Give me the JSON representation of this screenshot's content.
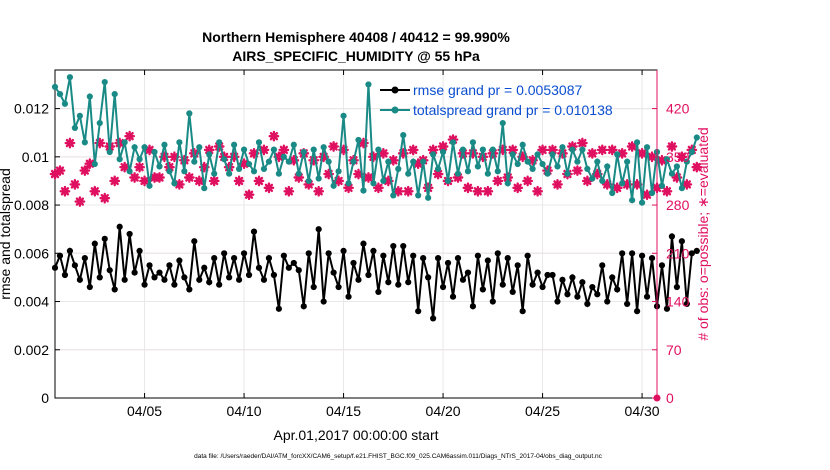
{
  "chart_data": {
    "type": "line",
    "title_line1": "Northern Hemisphere 40408 / 40412 = 99.990%",
    "title_line2": "AIRS_SPECIFIC_HUMIDITY @ 55 hPa",
    "xlabel": "Apr.01,2017 00:00:00 start",
    "ylabel_left": "rmse and totalspread",
    "ylabel_right": "# of obs: o=possible; ∗=evaluated",
    "footer": "data file: /Users/raeder/DAI/ATM_forcXX/CAM6_setup/f.e21.FHIST_BGC.f09_025.CAM6assim.011/Diags_NTrS_2017-04/obs_diag_output.nc",
    "xlim": [
      0.5,
      30.75
    ],
    "ylim_left": [
      0,
      0.0136
    ],
    "ylim_right": [
      0,
      476
    ],
    "x_ticks": [
      {
        "x": 5,
        "label": "04/05"
      },
      {
        "x": 10,
        "label": "04/10"
      },
      {
        "x": 15,
        "label": "04/15"
      },
      {
        "x": 20,
        "label": "04/20"
      },
      {
        "x": 25,
        "label": "04/25"
      },
      {
        "x": 30,
        "label": "04/30"
      }
    ],
    "y_ticks_left": [
      {
        "v": 0,
        "label": "0"
      },
      {
        "v": 0.002,
        "label": "0.002"
      },
      {
        "v": 0.004,
        "label": "0.004"
      },
      {
        "v": 0.006,
        "label": "0.006"
      },
      {
        "v": 0.008,
        "label": "0.008"
      },
      {
        "v": 0.01,
        "label": "0.01"
      },
      {
        "v": 0.012,
        "label": "0.012"
      }
    ],
    "y_ticks_right": [
      {
        "v": 0,
        "label": "0"
      },
      {
        "v": 70,
        "label": "70"
      },
      {
        "v": 140,
        "label": "140"
      },
      {
        "v": 210,
        "label": "210"
      },
      {
        "v": 280,
        "label": "280"
      },
      {
        "v": 350,
        "label": "350"
      },
      {
        "v": 420,
        "label": "420"
      }
    ],
    "grid": true,
    "legend_position": "top-right",
    "x_start": 0.5,
    "x_step": 0.25,
    "series": [
      {
        "name": "rmse grand pr = 0.0053087",
        "color": "#000000",
        "axis": "left",
        "marker": "circle",
        "values": [
          0.0054,
          0.0059,
          0.0051,
          0.0061,
          0.0055,
          0.0049,
          0.0058,
          0.0046,
          0.0064,
          0.005,
          0.0066,
          0.0053,
          0.0045,
          0.0071,
          0.0049,
          0.0068,
          0.0052,
          0.0061,
          0.0047,
          0.0055,
          0.005,
          0.0052,
          0.0049,
          0.0055,
          0.0047,
          0.0057,
          0.005,
          0.0045,
          0.0065,
          0.0049,
          0.0054,
          0.0048,
          0.0058,
          0.0047,
          0.006,
          0.005,
          0.0058,
          0.0049,
          0.006,
          0.0051,
          0.0069,
          0.0054,
          0.0049,
          0.0058,
          0.0051,
          0.0037,
          0.0059,
          0.0054,
          0.0056,
          0.0053,
          0.0038,
          0.006,
          0.0046,
          0.007,
          0.004,
          0.006,
          0.0052,
          0.0046,
          0.0061,
          0.0042,
          0.0056,
          0.0049,
          0.0064,
          0.0051,
          0.0061,
          0.0044,
          0.0059,
          0.0048,
          0.0063,
          0.0047,
          0.0063,
          0.0048,
          0.0059,
          0.0036,
          0.0058,
          0.005,
          0.0033,
          0.0058,
          0.0046,
          0.0056,
          0.0042,
          0.0058,
          0.0049,
          0.0052,
          0.0038,
          0.0059,
          0.0045,
          0.0057,
          0.004,
          0.006,
          0.0047,
          0.0058,
          0.0044,
          0.0055,
          0.0036,
          0.0059,
          0.0047,
          0.0052,
          0.0046,
          0.0051,
          0.0051,
          0.004,
          0.0049,
          0.0043,
          0.005,
          0.0042,
          0.0048,
          0.0039,
          0.0046,
          0.0043,
          0.0055,
          0.004,
          0.005,
          0.0045,
          0.006,
          0.0039,
          0.006,
          0.0036,
          0.0059,
          0.0042,
          0.0058,
          0.0038,
          0.0055,
          0.0037,
          0.0067,
          0.0046,
          0.0065,
          0.0039,
          0.006,
          0.0061
        ]
      },
      {
        "name": "totalspread grand pr = 0.010138",
        "color": "#1a8a86",
        "axis": "left",
        "marker": "circle",
        "values": [
          0.0129,
          0.0126,
          0.0122,
          0.0133,
          0.0112,
          0.0117,
          0.0106,
          0.0125,
          0.0097,
          0.0114,
          0.0131,
          0.0102,
          0.0126,
          0.0099,
          0.0106,
          0.0094,
          0.0104,
          0.0099,
          0.0104,
          0.0088,
          0.0102,
          0.0096,
          0.0105,
          0.0094,
          0.0089,
          0.0106,
          0.0094,
          0.0118,
          0.0098,
          0.0104,
          0.0087,
          0.0101,
          0.0093,
          0.0106,
          0.0099,
          0.0093,
          0.0105,
          0.0095,
          0.0103,
          0.0097,
          0.0094,
          0.0106,
          0.0095,
          0.0098,
          0.0103,
          0.0093,
          0.01,
          0.0098,
          0.0105,
          0.0093,
          0.0102,
          0.009,
          0.0103,
          0.0091,
          0.0104,
          0.0098,
          0.0088,
          0.0094,
          0.0117,
          0.0089,
          0.0098,
          0.0107,
          0.0086,
          0.013,
          0.0089,
          0.0103,
          0.009,
          0.0098,
          0.0084,
          0.0095,
          0.0109,
          0.0093,
          0.0098,
          0.0084,
          0.0098,
          0.0083,
          0.0101,
          0.0095,
          0.0102,
          0.009,
          0.0106,
          0.0093,
          0.0103,
          0.0094,
          0.0106,
          0.0096,
          0.0103,
          0.0093,
          0.0103,
          0.0094,
          0.0114,
          0.0089,
          0.0101,
          0.0097,
          0.0105,
          0.0098,
          0.0095,
          0.0101,
          0.0097,
          0.0093,
          0.0101,
          0.0096,
          0.0104,
          0.0093,
          0.0103,
          0.0098,
          0.0103,
          0.0095,
          0.0091,
          0.0098,
          0.009,
          0.0096,
          0.0085,
          0.0101,
          0.0089,
          0.0098,
          0.0082,
          0.0106,
          0.0081,
          0.0104,
          0.0085,
          0.0102,
          0.0088,
          0.0099,
          0.0093,
          0.0096,
          0.0087,
          0.0098,
          0.0102,
          0.0108
        ]
      },
      {
        "name": "",
        "color": "#e01060",
        "axis": "right",
        "marker": "star",
        "values": [
          325,
          330,
          300,
          370,
          310,
          285,
          330,
          340,
          300,
          370,
          290,
          365,
          315,
          370,
          335,
          380,
          320,
          335,
          315,
          360,
          320,
          320,
          350,
          335,
          350,
          310,
          345,
          320,
          355,
          315,
          335,
          360,
          315,
          365,
          350,
          335,
          350,
          315,
          340,
          295,
          355,
          315,
          360,
          305,
          380,
          350,
          360,
          300,
          345,
          320,
          355,
          310,
          345,
          300,
          350,
          325,
          365,
          315,
          360,
          305,
          345,
          325,
          370,
          320,
          350,
          305,
          355,
          315,
          345,
          300,
          355,
          300,
          360,
          340,
          345,
          305,
          360,
          325,
          365,
          315,
          375,
          320,
          355,
          305,
          355,
          300,
          350,
          300,
          355,
          315,
          360,
          320,
          360,
          305,
          350,
          315,
          345,
          300,
          360,
          330,
          360,
          310,
          355,
          325,
          365,
          330,
          370,
          315,
          355,
          325,
          360,
          310,
          360,
          305,
          355,
          310,
          365,
          310,
          355,
          295,
          350,
          305,
          345,
          300,
          365,
          320,
          350,
          310,
          360,
          335
        ]
      }
    ]
  }
}
